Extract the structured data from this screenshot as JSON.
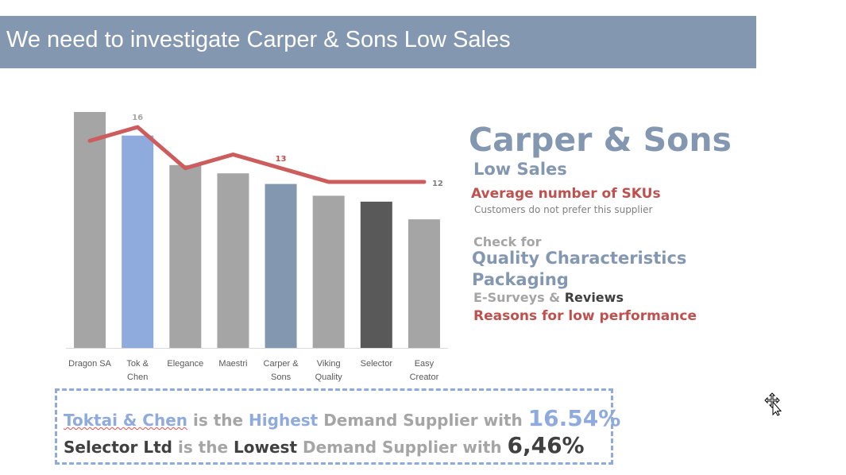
{
  "slide": {
    "title": "We need to investigate Carper & Sons Low Sales"
  },
  "chart_data": {
    "type": "bar",
    "categories": [
      "Dragon SA",
      "Tok & Chen",
      "Elegance",
      "Maestri",
      "Carper & Sons",
      "Viking Quality",
      "Selector",
      "Easy Creator"
    ],
    "category_lines": [
      [
        "Dragon SA"
      ],
      [
        "Tok &",
        "Chen"
      ],
      [
        "Elegance"
      ],
      [
        "Maestri"
      ],
      [
        "Carper &",
        "Sons"
      ],
      [
        "Viking",
        "Quality"
      ],
      [
        "Selector"
      ],
      [
        "Easy",
        "Creator"
      ]
    ],
    "series": [
      {
        "type": "bar",
        "values": [
          20,
          18,
          15.5,
          14.8,
          13.9,
          12.9,
          12.4,
          10.9
        ],
        "colors": [
          "#a5a5a5",
          "#8faadc",
          "#a5a5a5",
          "#a5a5a5",
          "#8497b0",
          "#a5a5a5",
          "#595959",
          "#a5a5a5"
        ]
      },
      {
        "type": "line",
        "values": [
          15,
          16,
          13,
          14,
          13,
          12,
          12,
          12
        ],
        "color": "#cd5c5c",
        "data_labels": [
          "",
          "16",
          "",
          "",
          "13",
          "",
          "",
          "12"
        ],
        "label_colors": [
          "",
          "#a5a5a5",
          "",
          "",
          "#c0504d",
          "",
          "",
          "#7f7f7f"
        ]
      }
    ],
    "ylim": [
      0,
      20
    ],
    "grid": false,
    "title": "",
    "xlabel": "",
    "ylabel": ""
  },
  "panel": {
    "heading": "Carper & Sons",
    "subheading": "Low Sales",
    "finding": "Average number of SKUs",
    "finding_note": "Customers do not prefer this supplier",
    "check_for": "Check for",
    "quality": "Quality Characteristics",
    "packaging": "Packaging",
    "surveys_a": "E-Surveys &",
    "surveys_b": "Reviews",
    "reasons": "Reasons for low performance"
  },
  "callout": {
    "l1_a": "Toktai & Chen",
    "l1_b": " is the ",
    "l1_c": "Highest",
    "l1_d": " Demand Supplier with ",
    "l1_e": "16.54%",
    "l2_a": "Selector Ltd",
    "l2_b": " is the ",
    "l2_c": "Lowest",
    "l2_d": " Demand Supplier with ",
    "l2_e": "6,46%"
  },
  "colors": {
    "title_bar": "#8497b0",
    "accent_blue": "#8497b0",
    "light_blue": "#8faadc",
    "red": "#c0504d",
    "gray": "#a5a5a5",
    "dark": "#404040"
  }
}
